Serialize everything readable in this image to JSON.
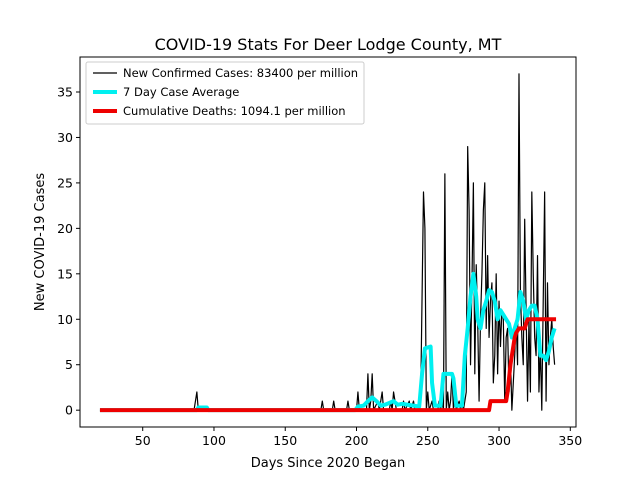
{
  "chart_data": {
    "type": "line",
    "title": "COVID-19 Stats For Deer Lodge County, MT",
    "xlabel": "Days Since 2020 Began",
    "ylabel": "New COVID-19 Cases",
    "xlim": [
      6,
      354
    ],
    "ylim": [
      -1.85,
      38.85
    ],
    "xticks": [
      50,
      100,
      150,
      200,
      250,
      300,
      350
    ],
    "yticks": [
      0,
      5,
      10,
      15,
      20,
      25,
      30,
      35
    ],
    "grid": false,
    "legend_position": "top-left",
    "series": [
      {
        "name": "New Confirmed Cases: 83400 per million",
        "color": "#000000",
        "points": [
          [
            20,
            0
          ],
          [
            86,
            0
          ],
          [
            88,
            2
          ],
          [
            89,
            0
          ],
          [
            175,
            0
          ],
          [
            176,
            1
          ],
          [
            177,
            0
          ],
          [
            183,
            0
          ],
          [
            184,
            1
          ],
          [
            185,
            0
          ],
          [
            193,
            0
          ],
          [
            194,
            1
          ],
          [
            195,
            0
          ],
          [
            200,
            0
          ],
          [
            201,
            2
          ],
          [
            202,
            0
          ],
          [
            207,
            0
          ],
          [
            208,
            4
          ],
          [
            209,
            0
          ],
          [
            210,
            1
          ],
          [
            211,
            4
          ],
          [
            212,
            0
          ],
          [
            215,
            1
          ],
          [
            216,
            0
          ],
          [
            218,
            2
          ],
          [
            219,
            0
          ],
          [
            223,
            0
          ],
          [
            224,
            1
          ],
          [
            225,
            0
          ],
          [
            226,
            2
          ],
          [
            227,
            1
          ],
          [
            228,
            0
          ],
          [
            232,
            0
          ],
          [
            233,
            1
          ],
          [
            234,
            0
          ],
          [
            237,
            1
          ],
          [
            238,
            0
          ],
          [
            240,
            1
          ],
          [
            241,
            0
          ],
          [
            244,
            0
          ],
          [
            245,
            1
          ],
          [
            247,
            24
          ],
          [
            248,
            20
          ],
          [
            249,
            0
          ],
          [
            250,
            2
          ],
          [
            251,
            0
          ],
          [
            253,
            1
          ],
          [
            254,
            0
          ],
          [
            257,
            0
          ],
          [
            258,
            1
          ],
          [
            259,
            0
          ],
          [
            260,
            1
          ],
          [
            261,
            0
          ],
          [
            262,
            26
          ],
          [
            263,
            0
          ],
          [
            264,
            2
          ],
          [
            265,
            0
          ],
          [
            266,
            1
          ],
          [
            267,
            4
          ],
          [
            268,
            0
          ],
          [
            269,
            2
          ],
          [
            270,
            0
          ],
          [
            272,
            1
          ],
          [
            273,
            0
          ],
          [
            274,
            1
          ],
          [
            275,
            0
          ],
          [
            277,
            2
          ],
          [
            278,
            29
          ],
          [
            279,
            22
          ],
          [
            280,
            5
          ],
          [
            281,
            14
          ],
          [
            282,
            25
          ],
          [
            283,
            4
          ],
          [
            284,
            16
          ],
          [
            285,
            10
          ],
          [
            286,
            1
          ],
          [
            287,
            10
          ],
          [
            288,
            15
          ],
          [
            289,
            22
          ],
          [
            290,
            25
          ],
          [
            291,
            9
          ],
          [
            292,
            17
          ],
          [
            293,
            8
          ],
          [
            294,
            12
          ],
          [
            295,
            14
          ],
          [
            296,
            3
          ],
          [
            297,
            6
          ],
          [
            298,
            15
          ],
          [
            299,
            4
          ],
          [
            300,
            12
          ],
          [
            301,
            7
          ],
          [
            302,
            11
          ],
          [
            303,
            10
          ],
          [
            304,
            1
          ],
          [
            305,
            8
          ],
          [
            306,
            9
          ],
          [
            307,
            2
          ],
          [
            308,
            6
          ],
          [
            309,
            0
          ],
          [
            310,
            3
          ],
          [
            311,
            6
          ],
          [
            312,
            10
          ],
          [
            313,
            5
          ],
          [
            314,
            37
          ],
          [
            315,
            13
          ],
          [
            316,
            8
          ],
          [
            317,
            5
          ],
          [
            318,
            21
          ],
          [
            319,
            11
          ],
          [
            320,
            1
          ],
          [
            321,
            10
          ],
          [
            322,
            2
          ],
          [
            323,
            24
          ],
          [
            324,
            15
          ],
          [
            325,
            8
          ],
          [
            326,
            6
          ],
          [
            327,
            17
          ],
          [
            328,
            2
          ],
          [
            329,
            7
          ],
          [
            330,
            0
          ],
          [
            331,
            12
          ],
          [
            332,
            24
          ],
          [
            333,
            1
          ],
          [
            334,
            14
          ],
          [
            335,
            5
          ],
          [
            336,
            8
          ],
          [
            337,
            10
          ],
          [
            338,
            7
          ],
          [
            339,
            5
          ]
        ]
      },
      {
        "name": "7 Day Case Average",
        "color": "#00f0f0",
        "points": [
          [
            20,
            0
          ],
          [
            88,
            0
          ],
          [
            89,
            0.3
          ],
          [
            95,
            0.3
          ],
          [
            96,
            0
          ],
          [
            199,
            0
          ],
          [
            201,
            0.4
          ],
          [
            205,
            0.5
          ],
          [
            208,
            1.0
          ],
          [
            211,
            1.4
          ],
          [
            214,
            1.0
          ],
          [
            217,
            0.5
          ],
          [
            220,
            0.6
          ],
          [
            223,
            0.8
          ],
          [
            226,
            1.0
          ],
          [
            229,
            0.6
          ],
          [
            232,
            0.7
          ],
          [
            236,
            0.6
          ],
          [
            240,
            0.5
          ],
          [
            244,
            0.4
          ],
          [
            246,
            4
          ],
          [
            248,
            6.8
          ],
          [
            252,
            7
          ],
          [
            253,
            3
          ],
          [
            255,
            0.5
          ],
          [
            259,
            0.5
          ],
          [
            261,
            4
          ],
          [
            267,
            4
          ],
          [
            268,
            3.5
          ],
          [
            270,
            0.5
          ],
          [
            274,
            0.5
          ],
          [
            276,
            6
          ],
          [
            278,
            9
          ],
          [
            280,
            12.5
          ],
          [
            282,
            15
          ],
          [
            284,
            12.5
          ],
          [
            285,
            10
          ],
          [
            287,
            9
          ],
          [
            289,
            11
          ],
          [
            291,
            12
          ],
          [
            293,
            13.2
          ],
          [
            295,
            13
          ],
          [
            297,
            12
          ],
          [
            299,
            10
          ],
          [
            301,
            11
          ],
          [
            303,
            10.5
          ],
          [
            305,
            10
          ],
          [
            307,
            9.5
          ],
          [
            309,
            8
          ],
          [
            311,
            9
          ],
          [
            313,
            10
          ],
          [
            315,
            13
          ],
          [
            317,
            12
          ],
          [
            319,
            10
          ],
          [
            321,
            11
          ],
          [
            323,
            11.5
          ],
          [
            325,
            11.5
          ],
          [
            327,
            10
          ],
          [
            329,
            6
          ],
          [
            331,
            6
          ],
          [
            333,
            5.5
          ],
          [
            335,
            6.5
          ],
          [
            337,
            8
          ],
          [
            339,
            9
          ]
        ]
      },
      {
        "name": "Cumulative Deaths: 1094.1 per million",
        "color": "#ee0000",
        "points": [
          [
            20,
            0
          ],
          [
            293,
            0
          ],
          [
            294,
            1
          ],
          [
            305,
            1
          ],
          [
            306,
            2
          ],
          [
            308,
            5
          ],
          [
            310,
            7
          ],
          [
            311,
            8
          ],
          [
            312,
            8.5
          ],
          [
            314,
            9
          ],
          [
            318,
            9
          ],
          [
            319,
            9.5
          ],
          [
            320,
            10
          ],
          [
            340,
            10
          ]
        ]
      }
    ]
  }
}
